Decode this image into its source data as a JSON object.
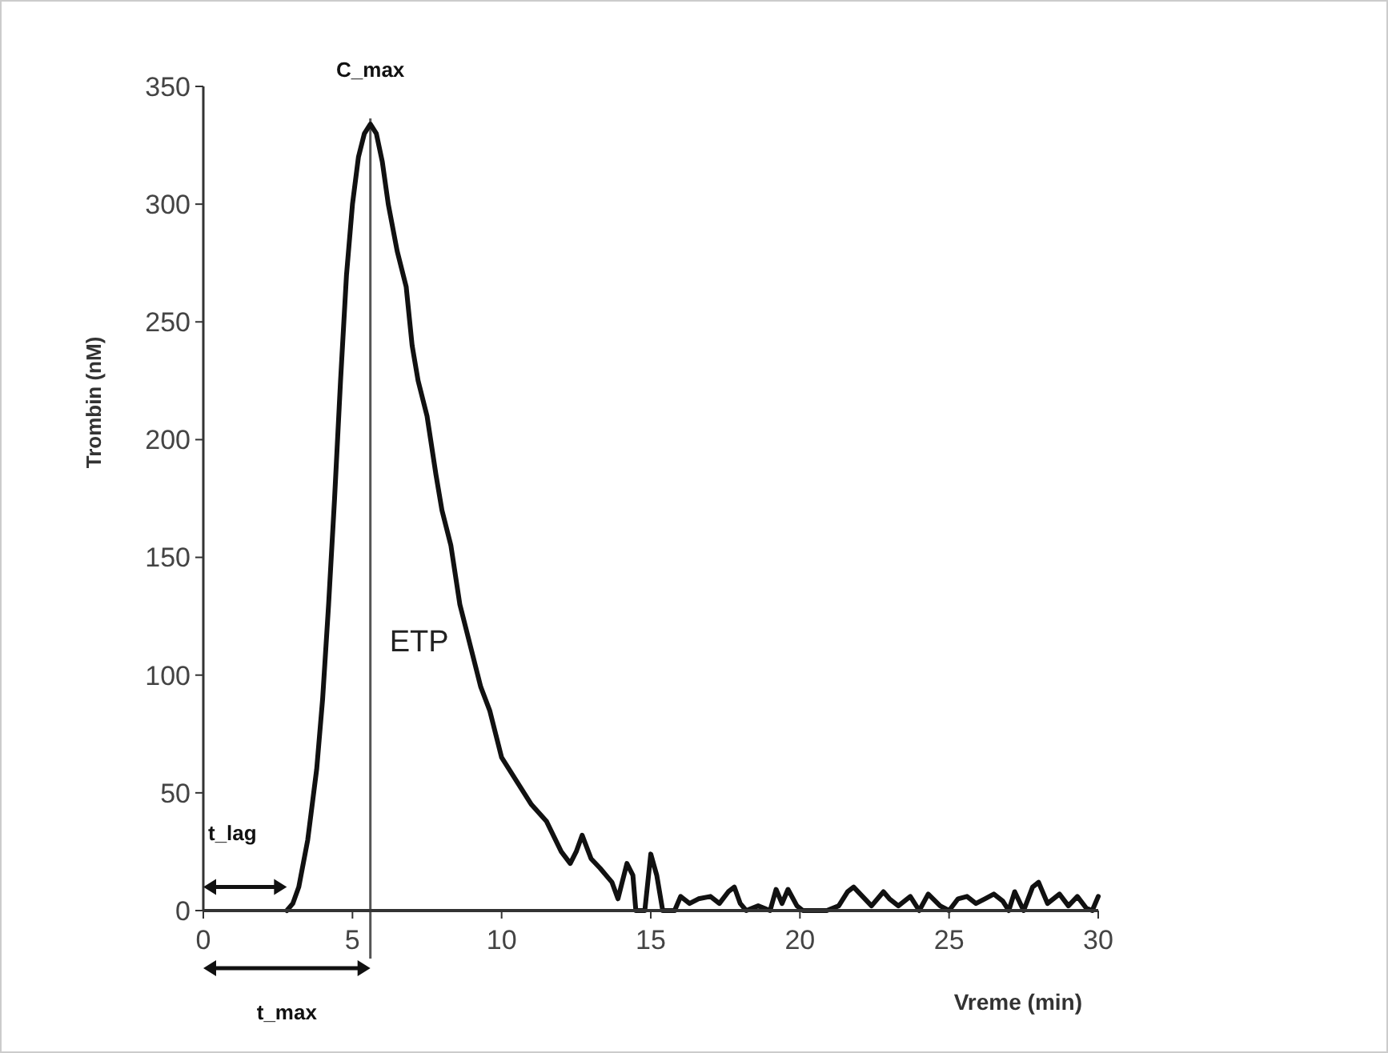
{
  "chart_data": {
    "type": "line",
    "xlabel": "Vreme (min)",
    "ylabel": "Trombin (nM)",
    "xlim": [
      0,
      30
    ],
    "ylim": [
      0,
      350
    ],
    "xticks": [
      0,
      5,
      10,
      15,
      20,
      25,
      30
    ],
    "yticks": [
      0,
      50,
      100,
      150,
      200,
      250,
      300,
      350
    ],
    "grid": false,
    "marker": "none",
    "line_style": "solid",
    "x": [
      2.8,
      3.0,
      3.2,
      3.5,
      3.8,
      4.0,
      4.2,
      4.4,
      4.6,
      4.8,
      5.0,
      5.2,
      5.4,
      5.6,
      5.8,
      6.0,
      6.2,
      6.5,
      6.8,
      7.0,
      7.2,
      7.5,
      7.8,
      8.0,
      8.3,
      8.6,
      9.0,
      9.3,
      9.6,
      10.0,
      10.5,
      11.0,
      11.5,
      12.0,
      12.3,
      12.5,
      12.7,
      13.0,
      13.3,
      13.7,
      13.9,
      14.2,
      14.4,
      14.5,
      14.8,
      15.0,
      15.2,
      15.4,
      15.8,
      16.0,
      16.3,
      16.6,
      17.0,
      17.3,
      17.6,
      17.8,
      18.0,
      18.2,
      18.6,
      19.0,
      19.2,
      19.4,
      19.6,
      19.9,
      20.1,
      20.9,
      21.3,
      21.6,
      21.8,
      22.1,
      22.4,
      22.8,
      23.0,
      23.3,
      23.7,
      24.0,
      24.3,
      24.7,
      25.0,
      25.3,
      25.6,
      25.9,
      26.2,
      26.5,
      26.8,
      27.0,
      27.2,
      27.5,
      27.8,
      28.0,
      28.3,
      28.7,
      29.0,
      29.3,
      29.6,
      29.8,
      30.0
    ],
    "series": [
      {
        "color": "#111111",
        "values": [
          0,
          3,
          10,
          30,
          60,
          90,
          130,
          175,
          225,
          270,
          300,
          320,
          330,
          334,
          330,
          318,
          300,
          280,
          265,
          240,
          225,
          210,
          185,
          170,
          155,
          130,
          110,
          95,
          85,
          65,
          55,
          45,
          38,
          25,
          20,
          25,
          32,
          22,
          18,
          12,
          5,
          20,
          15,
          0,
          0,
          24,
          15,
          0,
          0,
          6,
          3,
          5,
          6,
          3,
          8,
          10,
          3,
          0,
          2,
          0,
          9,
          3,
          9,
          2,
          0,
          0,
          2,
          8,
          10,
          6,
          2,
          8,
          5,
          2,
          6,
          0,
          7,
          2,
          0,
          5,
          6,
          3,
          5,
          7,
          4,
          0,
          8,
          0,
          10,
          12,
          3,
          7,
          2,
          6,
          1,
          0,
          6
        ]
      }
    ],
    "ref_lines": [
      {
        "axis": "x",
        "value": 5.6,
        "color": "#555555"
      }
    ],
    "annotations": [
      "C_max",
      "ETP",
      "t_lag",
      "t_max"
    ]
  }
}
